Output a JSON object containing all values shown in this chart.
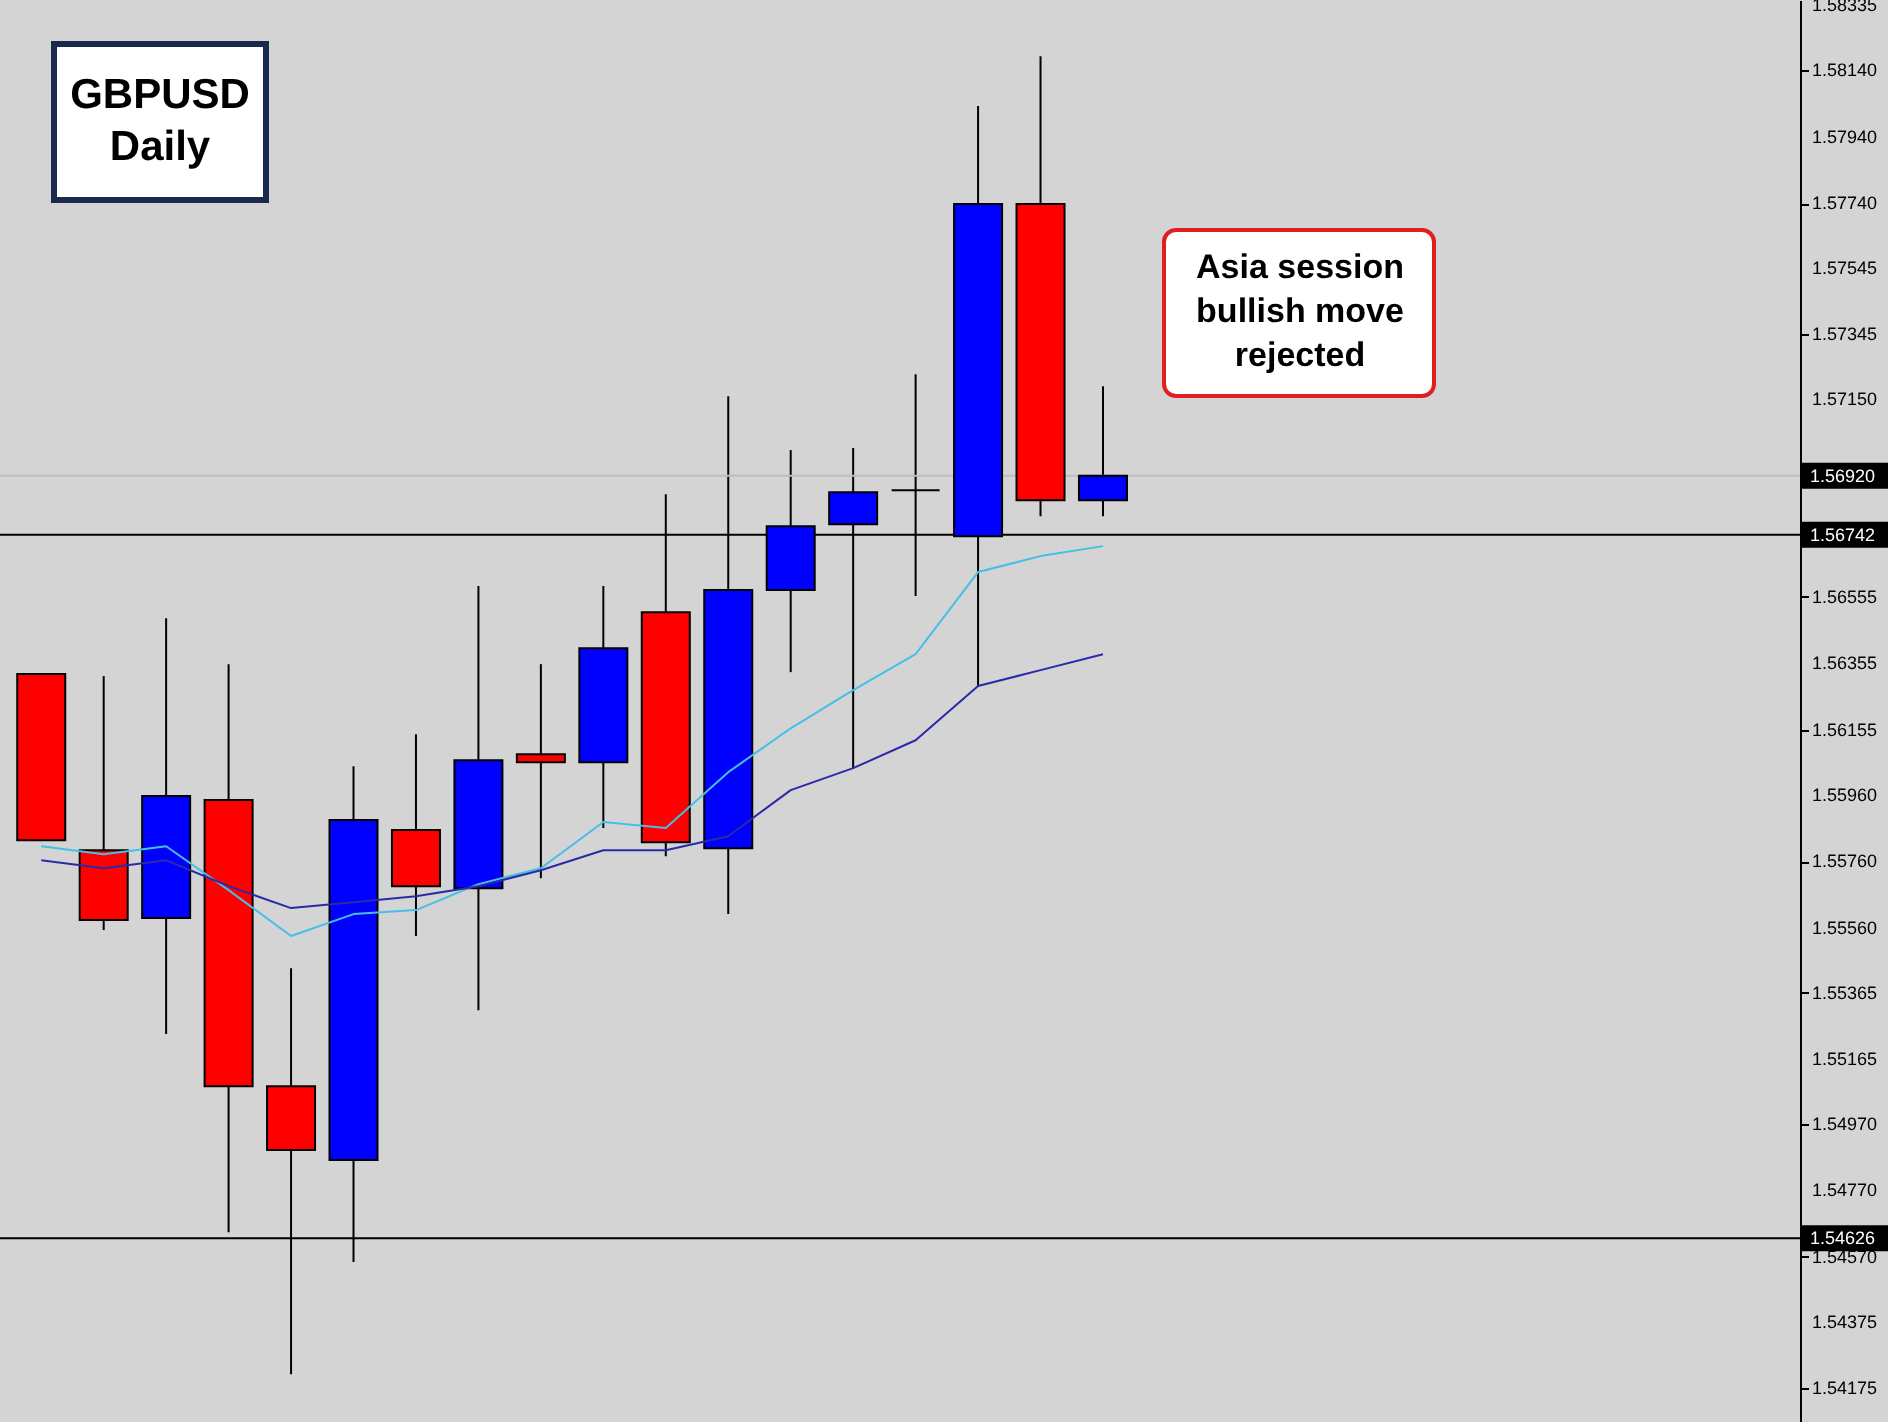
{
  "chart_data": {
    "type": "candlestick",
    "title": "GBPUSD Daily",
    "categories": [
      null,
      null,
      null,
      null,
      null,
      null,
      null,
      null,
      null,
      null,
      null,
      null,
      null,
      null,
      null,
      null,
      null,
      null
    ],
    "ohlc": [
      [
        1.56323,
        1.56323,
        1.55823,
        1.55823
      ],
      [
        1.55793,
        1.56317,
        1.55553,
        1.55583
      ],
      [
        1.55589,
        1.56491,
        1.5524,
        1.55956
      ],
      [
        1.55944,
        1.56353,
        1.54644,
        1.55083
      ],
      [
        1.55083,
        1.55438,
        1.54217,
        1.54891
      ],
      [
        1.54861,
        1.56046,
        1.54554,
        1.55884
      ],
      [
        1.55854,
        1.56142,
        1.55535,
        1.55685
      ],
      [
        1.55679,
        1.56588,
        1.55312,
        1.56064
      ],
      [
        1.56082,
        1.56353,
        1.55709,
        1.56058
      ],
      [
        1.56058,
        1.56588,
        1.5586,
        1.56401
      ],
      [
        1.56509,
        1.56864,
        1.55775,
        1.55817
      ],
      [
        1.55799,
        1.57159,
        1.55601,
        1.56576
      ],
      [
        1.56576,
        1.56997,
        1.56329,
        1.56768
      ],
      [
        1.56774,
        1.57003,
        1.5604,
        1.5687
      ],
      [
        1.56876,
        1.57225,
        1.56558,
        1.56876
      ],
      [
        1.56738,
        1.58032,
        1.56287,
        1.57737
      ],
      [
        1.57737,
        1.58182,
        1.56798,
        1.56846
      ],
      [
        1.56846,
        1.57189,
        1.56798,
        1.5692
      ]
    ],
    "colors": [
      "#ff0000",
      "#ff0000",
      "#0000ff",
      "#ff0000",
      "#ff0000",
      "#0000ff",
      "#ff0000",
      "#0000ff",
      "#ff0000",
      "#0000ff",
      "#ff0000",
      "#0000ff",
      "#0000ff",
      "#0000ff",
      "#000000",
      "#0000ff",
      "#ff0000",
      "#0000ff"
    ],
    "series": [
      {
        "type": "line",
        "color": "#45bfe8",
        "values": [
          1.55805,
          1.55781,
          1.55805,
          1.55673,
          1.55535,
          1.55601,
          1.55613,
          1.55691,
          1.55739,
          1.55878,
          1.5586,
          1.56028,
          1.5616,
          1.56275,
          1.56383,
          1.5663,
          1.56678,
          1.56708
        ]
      },
      {
        "type": "line",
        "color": "#2a2aa8",
        "values": [
          1.55763,
          1.55739,
          1.55763,
          1.55685,
          1.55619,
          1.55637,
          1.55655,
          1.55685,
          1.55733,
          1.55793,
          1.55793,
          1.55835,
          1.55974,
          1.5604,
          1.56124,
          1.56287,
          1.56335,
          1.56383
        ]
      }
    ],
    "ylim": [
      1.54073,
      1.58351
    ],
    "yticks": [
      1.58335,
      {
        "value": 1.5814,
        "label": "1.58140"
      },
      {
        "value": 1.5794,
        "label": "1.57940"
      },
      {
        "value": 1.5774,
        "label": "1.57740"
      },
      1.57545,
      1.57345,
      {
        "value": 1.5715,
        "label": "1.57150"
      },
      1.56555,
      1.56355,
      1.56155,
      {
        "value": 1.5596,
        "label": "1.55960"
      },
      {
        "value": 1.5576,
        "label": "1.55760"
      },
      {
        "value": 1.5556,
        "label": "1.55560"
      },
      1.55365,
      1.55165,
      {
        "value": 1.5497,
        "label": "1.54970"
      },
      {
        "value": 1.5477,
        "label": "1.54770"
      },
      {
        "value": 1.5457,
        "label": "1.54570"
      },
      1.54375,
      1.54175
    ],
    "ref_lines": [
      {
        "axis": "y",
        "value": 1.5692,
        "label": "1.56920",
        "color": "#bdbdbd"
      },
      {
        "axis": "y",
        "value": 1.56742,
        "label": "1.56742",
        "color": "#000000"
      },
      {
        "axis": "y",
        "value": 1.54626,
        "label": "1.54626",
        "color": "#000000"
      }
    ],
    "annotations": [
      "Asia session\nbullish move\nrejected"
    ],
    "grid": false,
    "tick_labels": "y"
  }
}
